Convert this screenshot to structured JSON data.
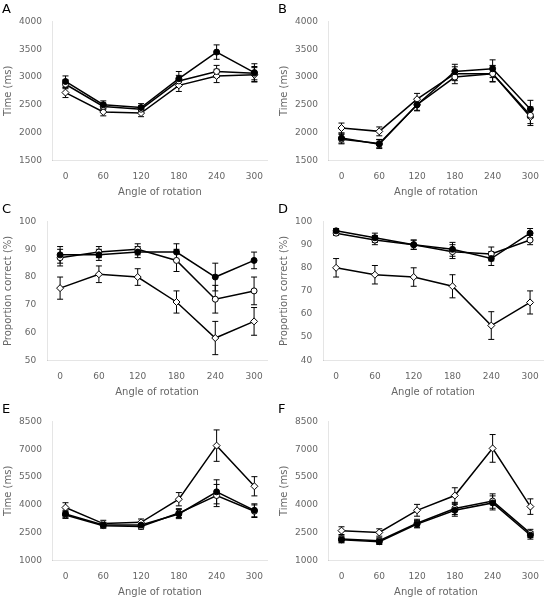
{
  "chart_data": [
    {
      "type": "line",
      "title": "A",
      "xlabel": "Angle of rotation",
      "ylabel": "Time (ms)",
      "x": [
        0,
        60,
        120,
        180,
        240,
        300
      ],
      "xlim": [
        -20,
        320
      ],
      "xticks": [
        0,
        60,
        120,
        180,
        240,
        300
      ],
      "ylim": [
        1500,
        4000
      ],
      "yticks": [
        1500,
        2000,
        2500,
        3000,
        3500,
        4000
      ],
      "grid": false,
      "series": [
        {
          "values": [
            2920,
            2500,
            2450,
            2970,
            3450,
            3080
          ],
          "yerr": [
            100,
            70,
            70,
            130,
            130,
            160
          ],
          "marker": "circle_filled",
          "color": "#000000"
        },
        {
          "values": [
            2870,
            2470,
            2420,
            2930,
            3100,
            3070
          ],
          "yerr": [
            80,
            60,
            60,
            100,
            110,
            120
          ],
          "marker": "circle_open",
          "color": "#000000"
        },
        {
          "values": [
            2720,
            2370,
            2350,
            2850,
            3020,
            3040
          ],
          "yerr": [
            90,
            70,
            65,
            110,
            120,
            130
          ],
          "marker": "diamond_open",
          "color": "#000000"
        }
      ]
    },
    {
      "type": "line",
      "title": "B",
      "xlabel": "Angle of rotation",
      "ylabel": "Time (ms)",
      "x": [
        0,
        60,
        120,
        180,
        240,
        300
      ],
      "xlim": [
        -20,
        320
      ],
      "xticks": [
        0,
        60,
        120,
        180,
        240,
        300
      ],
      "ylim": [
        1500,
        4000
      ],
      "yticks": [
        1500,
        2000,
        2500,
        3000,
        3500,
        4000
      ],
      "grid": false,
      "series": [
        {
          "values": [
            1900,
            1790,
            2500,
            3100,
            3150,
            2420
          ],
          "yerr": [
            90,
            80,
            110,
            130,
            160,
            160
          ],
          "marker": "circle_filled",
          "color": "#000000"
        },
        {
          "values": [
            1880,
            1800,
            2500,
            3000,
            3060,
            2310
          ],
          "yerr": [
            85,
            75,
            100,
            120,
            150,
            150
          ],
          "marker": "circle_open",
          "color": "#000000"
        },
        {
          "values": [
            2080,
            2020,
            2600,
            3060,
            3060,
            2280
          ],
          "yerr": [
            90,
            80,
            105,
            125,
            140,
            155
          ],
          "marker": "diamond_open",
          "color": "#000000"
        }
      ]
    },
    {
      "type": "line",
      "title": "C",
      "xlabel": "Angle of rotation",
      "ylabel": "Proportion correct (%)",
      "x": [
        0,
        60,
        120,
        180,
        240,
        300
      ],
      "xlim": [
        -20,
        320
      ],
      "xticks": [
        0,
        60,
        120,
        180,
        240,
        300
      ],
      "ylim": [
        50,
        100
      ],
      "yticks": [
        50,
        60,
        70,
        80,
        90,
        100
      ],
      "grid": false,
      "series": [
        {
          "values": [
            88,
            88,
            89,
            89,
            80,
            86
          ],
          "yerr": [
            3,
            2,
            2,
            3,
            5,
            3
          ],
          "marker": "circle_filled",
          "color": "#000000"
        },
        {
          "values": [
            87,
            89,
            90,
            86,
            72,
            75
          ],
          "yerr": [
            3,
            2,
            2,
            4,
            5,
            5
          ],
          "marker": "circle_open",
          "color": "#000000"
        },
        {
          "values": [
            76,
            81,
            80,
            71,
            58,
            64
          ],
          "yerr": [
            4,
            3,
            3,
            4,
            6,
            5
          ],
          "marker": "diamond_open",
          "color": "#000000"
        }
      ]
    },
    {
      "type": "line",
      "title": "D",
      "xlabel": "Angle of rotation",
      "ylabel": "Proportion correct (%)",
      "x": [
        0,
        60,
        120,
        180,
        240,
        300
      ],
      "xlim": [
        -20,
        320
      ],
      "xticks": [
        0,
        60,
        120,
        180,
        240,
        300
      ],
      "ylim": [
        40,
        100
      ],
      "yticks": [
        40,
        50,
        60,
        70,
        80,
        90,
        100
      ],
      "grid": false,
      "series": [
        {
          "values": [
            96,
            93,
            90,
            88,
            84,
            95
          ],
          "yerr": [
            1,
            2,
            2,
            3,
            3,
            2
          ],
          "marker": "circle_filled",
          "color": "#000000"
        },
        {
          "values": [
            95,
            92,
            90,
            87,
            86,
            92
          ],
          "yerr": [
            1,
            2,
            2,
            3,
            3,
            2
          ],
          "marker": "circle_open",
          "color": "#000000"
        },
        {
          "values": [
            80,
            77,
            76,
            72,
            55,
            65
          ],
          "yerr": [
            4,
            4,
            4,
            5,
            6,
            5
          ],
          "marker": "diamond_open",
          "color": "#000000"
        }
      ]
    },
    {
      "type": "line",
      "title": "E",
      "xlabel": "Angle of rotation",
      "ylabel": "Time (ms)",
      "x": [
        0,
        60,
        120,
        180,
        240,
        300
      ],
      "xlim": [
        -20,
        320
      ],
      "xticks": [
        0,
        60,
        120,
        180,
        240,
        300
      ],
      "ylim": [
        1000,
        8500
      ],
      "yticks": [
        1000,
        2500,
        4000,
        5500,
        7000,
        8500
      ],
      "grid": false,
      "series": [
        {
          "values": [
            3500,
            2900,
            2900,
            3500,
            4700,
            3700
          ],
          "yerr": [
            200,
            150,
            150,
            250,
            650,
            350
          ],
          "marker": "circle_filled",
          "color": "#000000"
        },
        {
          "values": [
            3450,
            2870,
            2820,
            3550,
            4500,
            3650
          ],
          "yerr": [
            190,
            140,
            140,
            240,
            600,
            340
          ],
          "marker": "circle_open",
          "color": "#000000"
        },
        {
          "values": [
            3850,
            2980,
            3050,
            4300,
            7200,
            5000
          ],
          "yerr": [
            260,
            180,
            180,
            360,
            850,
            520
          ],
          "marker": "diamond_open",
          "color": "#000000"
        }
      ]
    },
    {
      "type": "line",
      "title": "F",
      "xlabel": "Angle of rotation",
      "ylabel": "Time (ms)",
      "x": [
        0,
        60,
        120,
        180,
        240,
        300
      ],
      "xlim": [
        -20,
        320
      ],
      "xticks": [
        0,
        60,
        120,
        180,
        240,
        300
      ],
      "ylim": [
        1000,
        8500
      ],
      "yticks": [
        1000,
        2500,
        4000,
        5500,
        7000,
        8500
      ],
      "grid": false,
      "series": [
        {
          "values": [
            2100,
            2000,
            2950,
            3700,
            4100,
            2350
          ],
          "yerr": [
            160,
            150,
            200,
            320,
            380,
            210
          ],
          "marker": "circle_filled",
          "color": "#000000"
        },
        {
          "values": [
            2150,
            2050,
            3000,
            3800,
            4200,
            2450
          ],
          "yerr": [
            170,
            160,
            215,
            330,
            390,
            220
          ],
          "marker": "circle_open",
          "color": "#000000"
        },
        {
          "values": [
            2600,
            2500,
            3700,
            4500,
            7050,
            3900
          ],
          "yerr": [
            210,
            200,
            320,
            420,
            750,
            420
          ],
          "marker": "diamond_open",
          "color": "#000000"
        }
      ]
    }
  ]
}
